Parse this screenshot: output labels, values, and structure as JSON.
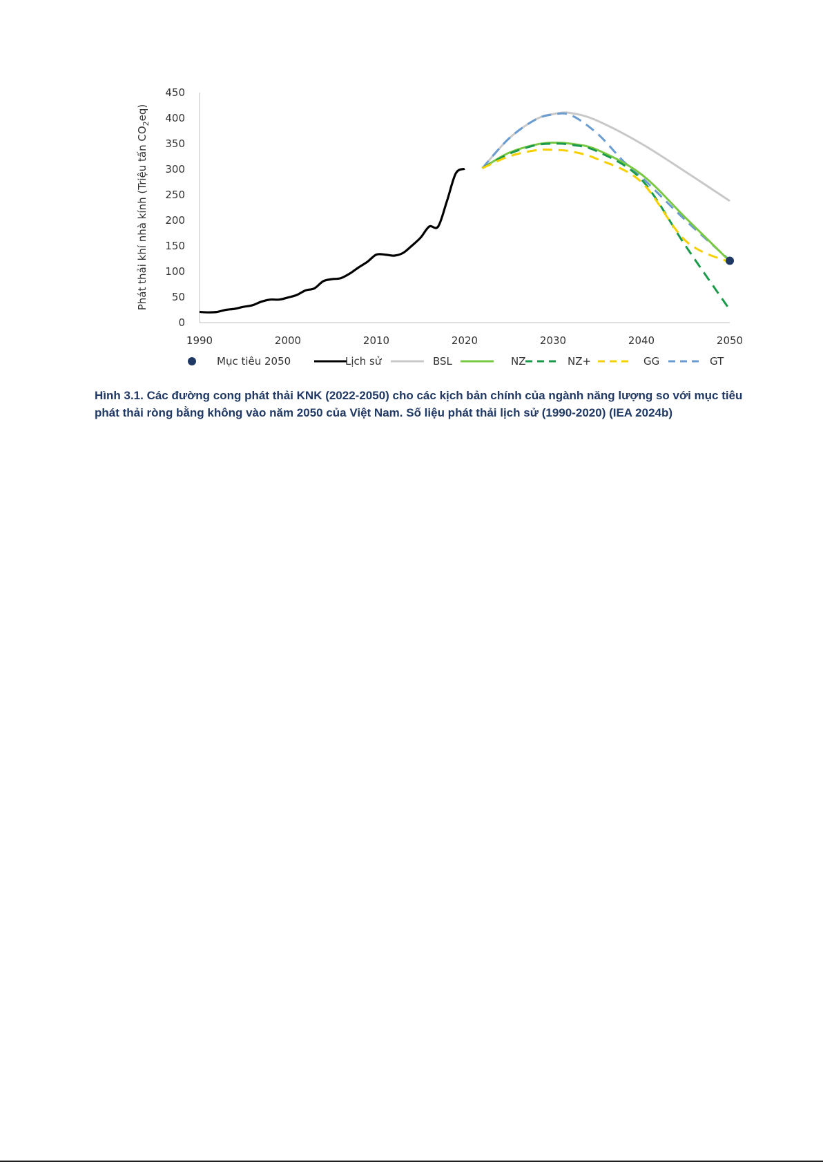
{
  "chart_data": {
    "type": "line",
    "title": "",
    "xlabel": "",
    "ylabel": "Phát thải khí nhà kính (Triệu tấn CO",
    "ylabel_subscript": "2",
    "ylabel_suffix": "eq)",
    "xlim": [
      1990,
      2050
    ],
    "ylim": [
      0,
      450
    ],
    "xticks": [
      "1990",
      "2000",
      "2010",
      "2020",
      "2030",
      "2040",
      "2050"
    ],
    "yticks": [
      "0",
      "50",
      "100",
      "150",
      "200",
      "250",
      "300",
      "350",
      "400",
      "450"
    ],
    "grid": false,
    "legend_position": "bottom",
    "legend": [
      {
        "label": "Mục tiêu 2050",
        "marker": "dot",
        "color": "#203864"
      },
      {
        "label": "Lịch sử",
        "style": "solid",
        "color": "#000000"
      },
      {
        "label": "BSL",
        "style": "solid",
        "color": "#c8c8c8"
      },
      {
        "label": "NZ",
        "style": "solid",
        "color": "#7ac943"
      },
      {
        "label": "NZ+",
        "style": "dashed",
        "color": "#1a9a4a"
      },
      {
        "label": "GG",
        "style": "dashed",
        "color": "#f5d000"
      },
      {
        "label": "GT",
        "style": "dashed",
        "color": "#6a9bd1"
      }
    ],
    "series": [
      {
        "name": "Lịch sử",
        "color": "#000000",
        "style": "solid",
        "x": [
          1990,
          1991,
          1992,
          1993,
          1994,
          1995,
          1996,
          1997,
          1998,
          1999,
          2000,
          2001,
          2002,
          2003,
          2004,
          2005,
          2006,
          2007,
          2008,
          2009,
          2010,
          2011,
          2012,
          2013,
          2014,
          2015,
          2016,
          2017,
          2018,
          2019,
          2020
        ],
        "y": [
          21,
          20,
          21,
          25,
          27,
          31,
          34,
          41,
          45,
          45,
          49,
          54,
          63,
          67,
          81,
          85,
          87,
          96,
          108,
          119,
          133,
          133,
          131,
          136,
          150,
          166,
          188,
          188,
          238,
          292,
          301
        ]
      },
      {
        "name": "BSL",
        "color": "#c8c8c8",
        "style": "solid",
        "x": [
          2022,
          2025,
          2028,
          2030,
          2032,
          2035,
          2040,
          2045,
          2050
        ],
        "y": [
          302,
          360,
          397,
          408,
          410,
          395,
          350,
          295,
          238
        ]
      },
      {
        "name": "GT",
        "color": "#6a9bd1",
        "style": "dashed",
        "x": [
          2022,
          2025,
          2028,
          2030,
          2032,
          2035,
          2038,
          2040,
          2045,
          2050
        ],
        "y": [
          302,
          360,
          397,
          407,
          406,
          370,
          315,
          285,
          200,
          122
        ]
      },
      {
        "name": "NZ",
        "color": "#7ac943",
        "style": "solid",
        "x": [
          2022,
          2025,
          2028,
          2030,
          2032,
          2035,
          2040,
          2045,
          2050
        ],
        "y": [
          302,
          332,
          348,
          352,
          350,
          338,
          290,
          205,
          120
        ]
      },
      {
        "name": "NZ+",
        "color": "#1a9a4a",
        "style": "dashed",
        "x": [
          2022,
          2025,
          2028,
          2030,
          2032,
          2035,
          2040,
          2045,
          2050
        ],
        "y": [
          302,
          330,
          347,
          350,
          348,
          335,
          280,
          150,
          25
        ]
      },
      {
        "name": "GG",
        "color": "#f5d000",
        "style": "dashed",
        "x": [
          2022,
          2025,
          2028,
          2030,
          2032,
          2035,
          2040,
          2045,
          2050
        ],
        "y": [
          302,
          325,
          337,
          338,
          335,
          320,
          275,
          160,
          118
        ]
      }
    ],
    "target_point": {
      "name": "Mục tiêu 2050",
      "x": 2050,
      "y": 121,
      "color": "#203864"
    },
    "caption_line1": "Hình 3.1. Các đường cong phát thải KNK (2022-2050) cho các kịch bản chính của ngành năng lượng so với mục tiêu",
    "caption_line2": "phát thải ròng bằng không vào năm 2050 của Việt Nam. Số liệu phát thải lịch sử (1990-2020) (IEA 2024b)"
  }
}
